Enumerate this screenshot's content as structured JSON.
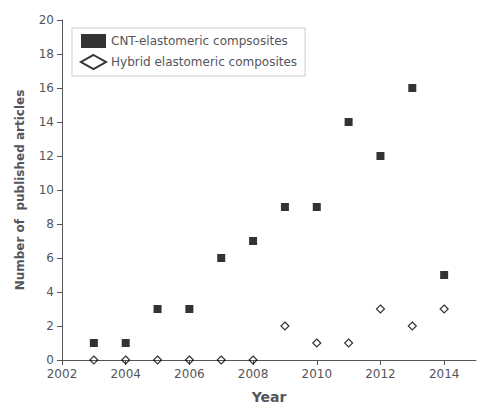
{
  "chart_data": {
    "type": "scatter",
    "x": [
      2003,
      2004,
      2005,
      2006,
      2007,
      2008,
      2009,
      2010,
      2011,
      2012,
      2013,
      2014
    ],
    "series": [
      {
        "name": "CNT-elastomeric compsosites",
        "color": "#000000",
        "marker": "square",
        "values": [
          1,
          1,
          3,
          3,
          6,
          7,
          9,
          9,
          14,
          12,
          16,
          5
        ]
      },
      {
        "name": "Hybrid elastomeric composites",
        "color": "#000000",
        "marker": "open_diamond",
        "values": [
          0,
          0,
          0,
          0,
          0,
          0,
          2,
          1,
          1,
          3,
          2,
          3
        ]
      }
    ],
    "xlabel": "Year",
    "ylabel": "Number of  published articles",
    "xlim": [
      2002,
      2015
    ],
    "xticks": [
      2002,
      2004,
      2006,
      2008,
      2010,
      2012,
      2014
    ],
    "ylim": [
      0,
      20
    ],
    "yticks": [
      0,
      2,
      4,
      6,
      8,
      10,
      12,
      14,
      16,
      18,
      20
    ],
    "grid": false,
    "legend": "upper left"
  }
}
